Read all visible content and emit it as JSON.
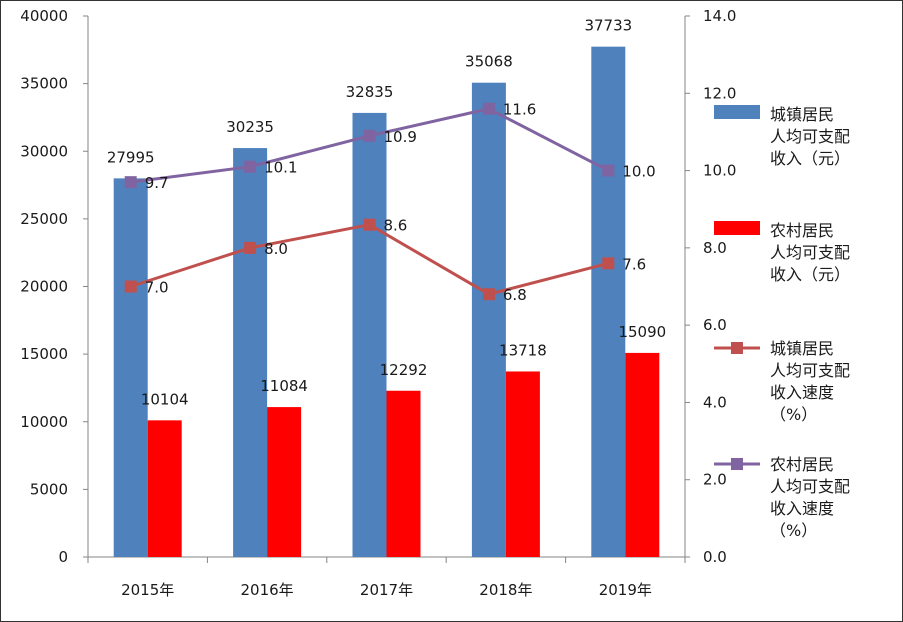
{
  "chart_data": {
    "type": "bar",
    "categories": [
      "2015年",
      "2016年",
      "2017年",
      "2018年",
      "2019年"
    ],
    "bar_series": [
      {
        "name": "城镇居民人均可支配收入（元）",
        "legend_lines": [
          "城镇居民",
          "人均可支配",
          "收入（元）"
        ],
        "values": [
          27995,
          30235,
          32835,
          35068,
          37733
        ],
        "color": "#4f81bd"
      },
      {
        "name": "农村居民人均可支配收入（元）",
        "legend_lines": [
          "农村居民",
          "人均可支配",
          "收入（元）"
        ],
        "values": [
          10104,
          11084,
          12292,
          13718,
          15090
        ],
        "color": "#ff0000"
      }
    ],
    "line_series": [
      {
        "name": "城镇居民人均可支配收入速度（%）",
        "legend_lines": [
          "城镇居民",
          "人均可支配",
          "收入速度",
          "（%）"
        ],
        "values": [
          7.0,
          8.0,
          8.6,
          6.8,
          7.6
        ],
        "labels": [
          "7.0",
          "8.0",
          "8.6",
          "6.8",
          "7.6"
        ],
        "color": "#c0504d"
      },
      {
        "name": "农村居民人均可支配收入速度（%）",
        "legend_lines": [
          "农村居民",
          "人均可支配",
          "收入速度",
          "（%）"
        ],
        "values": [
          9.7,
          10.1,
          10.9,
          11.6,
          10.0
        ],
        "labels": [
          "9.7",
          "10.1",
          "10.9",
          "11.6",
          "10.0"
        ],
        "color": "#8064a2"
      }
    ],
    "y_left": {
      "min": 0,
      "max": 40000,
      "step": 5000,
      "ticks": [
        "0",
        "5000",
        "10000",
        "15000",
        "20000",
        "25000",
        "30000",
        "35000",
        "40000"
      ]
    },
    "y_right": {
      "min": 0,
      "max": 14,
      "step": 2,
      "ticks": [
        "0.0",
        "2.0",
        "4.0",
        "6.0",
        "8.0",
        "10.0",
        "12.0",
        "14.0"
      ]
    },
    "grid": false,
    "legend_position": "right",
    "title": "",
    "xlabel": "",
    "ylabel": ""
  }
}
